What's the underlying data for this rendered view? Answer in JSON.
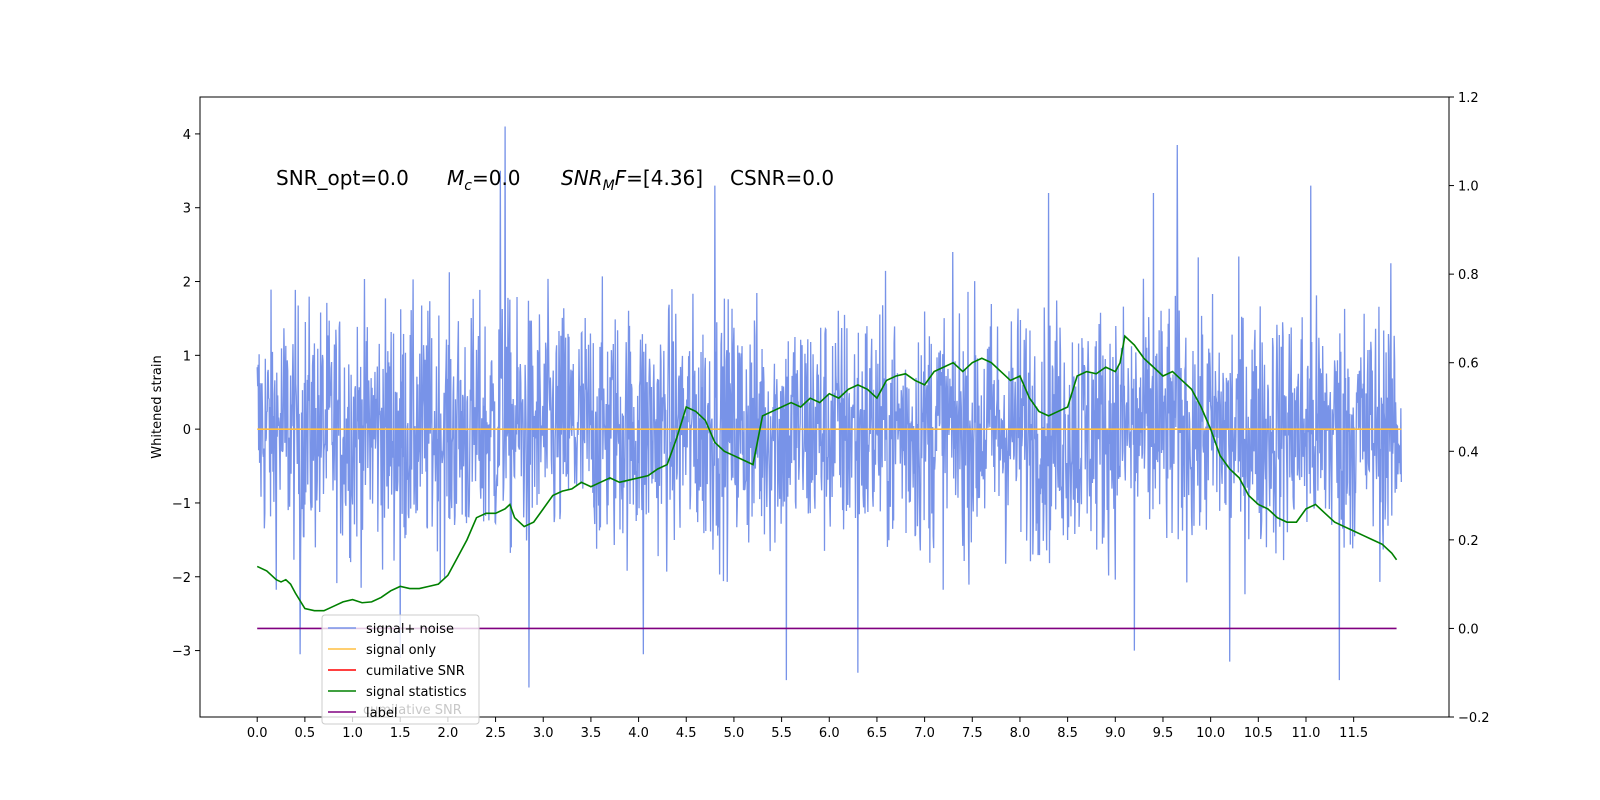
{
  "chart_data": {
    "type": "line",
    "ylabel": "Whitened strain",
    "xlim": [
      -0.6,
      12.5
    ],
    "ylim": [
      -3.9,
      4.5
    ],
    "y2lim": [
      -0.2,
      1.2
    ],
    "x_ticks": [
      0.0,
      0.5,
      1.0,
      1.5,
      2.0,
      2.5,
      3.0,
      3.5,
      4.0,
      4.5,
      5.0,
      5.5,
      6.0,
      6.5,
      7.0,
      7.5,
      8.0,
      8.5,
      9.0,
      9.5,
      10.0,
      10.5,
      11.0,
      11.5
    ],
    "x_tick_labels": [
      "0.0",
      "0.5",
      "1.0",
      "1.5",
      "2.0",
      "2.5",
      "3.0",
      "3.5",
      "4.0",
      "4.5",
      "5.0",
      "5.5",
      "6.0",
      "6.5",
      "7.0",
      "7.5",
      "8.0",
      "8.5",
      "9.0",
      "9.5",
      "10.0",
      "10.5",
      "11.0",
      "11.5"
    ],
    "y_ticks": [
      -3,
      -2,
      -1,
      0,
      1,
      2,
      3,
      4
    ],
    "y_tick_labels": [
      "−3",
      "−2",
      "−1",
      "0",
      "1",
      "2",
      "3",
      "4"
    ],
    "y2_ticks": [
      -0.2,
      0.0,
      0.2,
      0.4,
      0.6,
      0.8,
      1.0,
      1.2
    ],
    "y2_tick_labels": [
      "−0.2",
      "0.0",
      "0.2",
      "0.4",
      "0.6",
      "0.8",
      "1.0",
      "1.2"
    ],
    "annotations": {
      "snr_opt": "SNR_opt=0.0",
      "mc_base": "M",
      "mc_sub": "c",
      "mc_value": "=0.0",
      "snrmf_base": "SNR",
      "snrmf_sub": "M",
      "snrmf_f": "F",
      "snrmf_value": "=[4.36]",
      "csnr": "CSNR=0.0"
    },
    "series": [
      {
        "name": "signal+ noise",
        "color": "#7893e8",
        "axis": "left",
        "kind": "noise",
        "x_range": [
          0.0,
          12.0
        ],
        "typical_range": [
          -1.5,
          1.5
        ],
        "peaks": [
          [
            2.6,
            4.1
          ],
          [
            9.65,
            3.85
          ],
          [
            2.55,
            3.5
          ],
          [
            4.8,
            3.3
          ],
          [
            11.05,
            3.3
          ],
          [
            8.3,
            3.2
          ],
          [
            9.4,
            3.2
          ],
          [
            5.55,
            -3.4
          ],
          [
            6.3,
            -3.3
          ],
          [
            11.35,
            -3.4
          ],
          [
            2.85,
            -3.5
          ],
          [
            0.45,
            -3.05
          ],
          [
            10.2,
            -3.15
          ],
          [
            4.05,
            -3.05
          ],
          [
            1.5,
            -3.1
          ],
          [
            9.2,
            -3.0
          ]
        ]
      },
      {
        "name": "signal only",
        "color": "#ffbf40",
        "axis": "left",
        "x": [
          0.0,
          12.0
        ],
        "y": [
          0.0,
          0.0
        ]
      },
      {
        "name": "cumilative SNR",
        "color": "#ff0000",
        "axis": "right",
        "x": [],
        "y": []
      },
      {
        "name": "signal statistics",
        "color": "#008000",
        "axis": "right",
        "x": [
          0.0,
          0.1,
          0.15,
          0.2,
          0.25,
          0.3,
          0.35,
          0.4,
          0.5,
          0.6,
          0.7,
          0.8,
          0.9,
          1.0,
          1.1,
          1.2,
          1.3,
          1.4,
          1.5,
          1.6,
          1.7,
          1.8,
          1.9,
          2.0,
          2.1,
          2.2,
          2.3,
          2.4,
          2.5,
          2.6,
          2.65,
          2.7,
          2.8,
          2.9,
          3.0,
          3.1,
          3.2,
          3.3,
          3.4,
          3.5,
          3.6,
          3.7,
          3.8,
          3.9,
          4.0,
          4.1,
          4.2,
          4.3,
          4.4,
          4.5,
          4.6,
          4.7,
          4.8,
          4.9,
          5.0,
          5.1,
          5.2,
          5.3,
          5.4,
          5.5,
          5.6,
          5.7,
          5.8,
          5.9,
          6.0,
          6.1,
          6.2,
          6.3,
          6.4,
          6.5,
          6.6,
          6.7,
          6.8,
          6.9,
          7.0,
          7.1,
          7.2,
          7.3,
          7.4,
          7.5,
          7.6,
          7.7,
          7.8,
          7.9,
          8.0,
          8.1,
          8.2,
          8.3,
          8.4,
          8.5,
          8.6,
          8.7,
          8.8,
          8.9,
          9.0,
          9.05,
          9.1,
          9.2,
          9.3,
          9.4,
          9.5,
          9.6,
          9.7,
          9.8,
          9.9,
          10.0,
          10.1,
          10.2,
          10.3,
          10.4,
          10.5,
          10.6,
          10.7,
          10.8,
          10.9,
          11.0,
          11.1,
          11.2,
          11.3,
          11.4,
          11.5,
          11.6,
          11.7,
          11.8,
          11.9,
          11.95
        ],
        "y": [
          0.14,
          0.13,
          0.12,
          0.11,
          0.105,
          0.11,
          0.1,
          0.08,
          0.045,
          0.04,
          0.04,
          0.05,
          0.06,
          0.065,
          0.058,
          0.06,
          0.07,
          0.085,
          0.095,
          0.09,
          0.09,
          0.095,
          0.1,
          0.12,
          0.16,
          0.2,
          0.25,
          0.26,
          0.26,
          0.27,
          0.28,
          0.25,
          0.23,
          0.24,
          0.27,
          0.3,
          0.31,
          0.315,
          0.33,
          0.32,
          0.33,
          0.34,
          0.33,
          0.335,
          0.34,
          0.345,
          0.36,
          0.37,
          0.43,
          0.5,
          0.49,
          0.47,
          0.42,
          0.4,
          0.39,
          0.38,
          0.37,
          0.48,
          0.49,
          0.5,
          0.51,
          0.5,
          0.52,
          0.51,
          0.53,
          0.52,
          0.54,
          0.55,
          0.54,
          0.52,
          0.56,
          0.57,
          0.575,
          0.56,
          0.55,
          0.58,
          0.59,
          0.6,
          0.58,
          0.6,
          0.61,
          0.6,
          0.58,
          0.56,
          0.57,
          0.52,
          0.49,
          0.48,
          0.49,
          0.5,
          0.57,
          0.58,
          0.575,
          0.59,
          0.58,
          0.6,
          0.66,
          0.64,
          0.61,
          0.59,
          0.57,
          0.58,
          0.56,
          0.54,
          0.5,
          0.45,
          0.39,
          0.36,
          0.34,
          0.3,
          0.28,
          0.27,
          0.25,
          0.24,
          0.24,
          0.27,
          0.28,
          0.26,
          0.24,
          0.23,
          0.22,
          0.21,
          0.2,
          0.19,
          0.17,
          0.155
        ]
      },
      {
        "name": "label",
        "color": "#800080",
        "axis": "right",
        "x": [
          0.0,
          11.95
        ],
        "y": [
          0.0,
          0.0
        ]
      }
    ],
    "legend_overlapped_text": "cumilative SNR"
  }
}
